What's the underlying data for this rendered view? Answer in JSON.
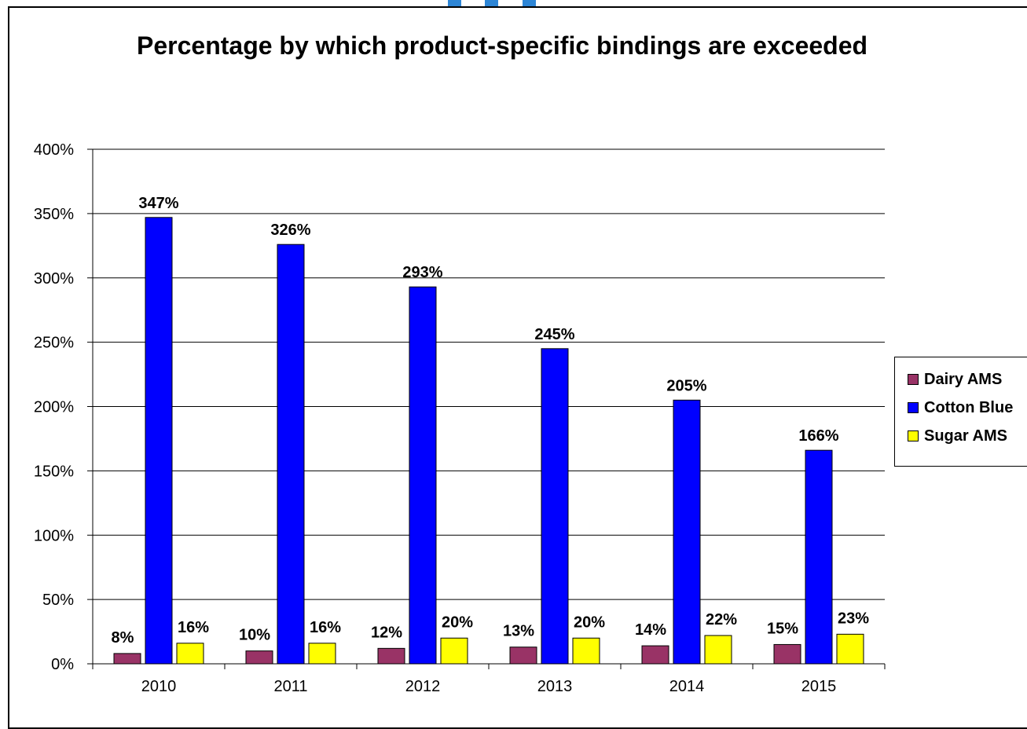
{
  "chart_data": {
    "type": "bar",
    "title": "Percentage by which product-specific bindings are exceeded",
    "categories": [
      "2010",
      "2011",
      "2012",
      "2013",
      "2014",
      "2015"
    ],
    "series": [
      {
        "name": "Dairy AMS",
        "color": "#993366",
        "values": [
          8,
          10,
          12,
          13,
          14,
          15
        ],
        "labels": [
          "8%",
          "10%",
          "12%",
          "13%",
          "14%",
          "15%"
        ]
      },
      {
        "name": "Cotton Blue",
        "color": "#0000ff",
        "values": [
          347,
          326,
          293,
          245,
          205,
          166
        ],
        "labels": [
          "347%",
          "326%",
          "293%",
          "245%",
          "205%",
          "166%"
        ]
      },
      {
        "name": "Sugar AMS",
        "color": "#ffff00",
        "values": [
          16,
          16,
          20,
          20,
          22,
          23
        ],
        "labels": [
          "16%",
          "16%",
          "20%",
          "20%",
          "22%",
          "23%"
        ]
      }
    ],
    "ylim": [
      0,
      400
    ],
    "yticks": [
      0,
      50,
      100,
      150,
      200,
      250,
      300,
      350,
      400
    ],
    "ytick_labels": [
      "0%",
      "50%",
      "100%",
      "150%",
      "200%",
      "250%",
      "300%",
      "350%",
      "400%"
    ],
    "grid": true,
    "legend": "right"
  }
}
